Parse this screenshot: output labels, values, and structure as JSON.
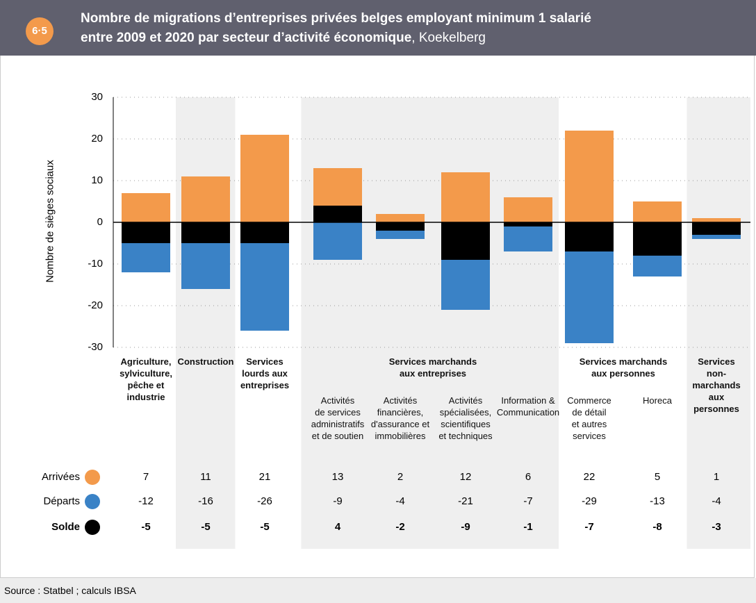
{
  "header": {
    "badge": "6·5",
    "title_lines": [
      "Nombre de migrations d’entreprises privées belges employant minimum 1 salarié",
      "entre 2009 et 2020 par secteur d’activité économique"
    ],
    "title_place": ", Koekelberg"
  },
  "chart_data": {
    "type": "bar",
    "y_label": "Nombre de sièges sociaux",
    "ylim": [
      -30,
      30
    ],
    "yticks": [
      -30,
      -20,
      -10,
      0,
      10,
      20,
      30
    ],
    "grid": true,
    "groups": [
      {
        "name": "Agriculture,\nsylviculture,\npêche et\nindustrie",
        "categories": [
          null
        ]
      },
      {
        "name": "Construction",
        "categories": [
          null
        ]
      },
      {
        "name": "Services\nlourds aux\nentreprises",
        "categories": [
          null
        ]
      },
      {
        "name": "Services marchands\naux entreprises",
        "categories": [
          "Activités\nde services\nadministratifs\net de soutien",
          "Activités\nfinancières,\nd'assurance et\nimmobilières",
          "Activités\nspécialisées,\nscientifiques\net techniques",
          "Information &\nCommunication"
        ]
      },
      {
        "name": "Services marchands\naux personnes",
        "categories": [
          "Commerce\nde détail\net autres\nservices",
          "Horeca"
        ]
      },
      {
        "name": "Services\nnon-marchands\naux personnes",
        "categories": [
          null
        ]
      }
    ],
    "series": [
      {
        "name": "Arrivées",
        "color": "#f39a4b",
        "values": [
          7,
          11,
          21,
          13,
          2,
          12,
          6,
          22,
          5,
          1
        ]
      },
      {
        "name": "Départs",
        "color": "#3a82c6",
        "values": [
          -12,
          -16,
          -26,
          -9,
          -4,
          -21,
          -7,
          -29,
          -13,
          -4
        ]
      },
      {
        "name": "Solde",
        "color": "#000000",
        "values": [
          -5,
          -5,
          -5,
          4,
          -2,
          -9,
          -1,
          -7,
          -8,
          -3
        ]
      }
    ]
  },
  "footer": {
    "source": "Source : Statbel ; calculs IBSA"
  }
}
